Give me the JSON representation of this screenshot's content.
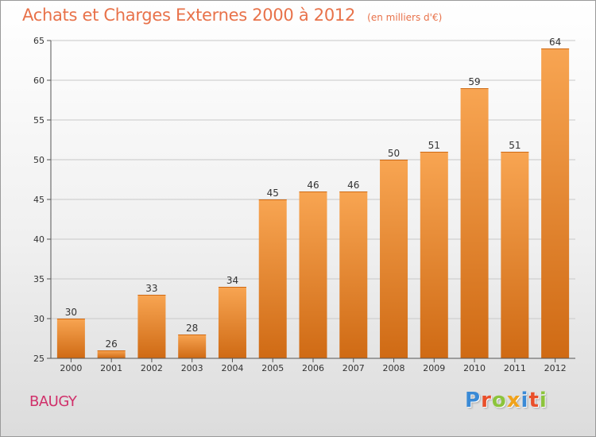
{
  "header": {
    "title": "Achats et Charges Externes 2000 à 2012",
    "unit": "(en milliers d'€)"
  },
  "footer": {
    "commune": "BAUGY",
    "brand": "Proxiti"
  },
  "colors": {
    "title": "#e8724a",
    "bar_light": "#f8a552",
    "bar_dark": "#cf6a14",
    "commune": "#d0306a",
    "axis": "#555555",
    "grid": "#c8c8c8",
    "brand_letters": [
      "#3a8ad6",
      "#e94f2a",
      "#8cc43c",
      "#f0a21a",
      "#3a8ad6",
      "#e94f2a",
      "#8cc43c"
    ]
  },
  "chart_data": {
    "type": "bar",
    "title": "Achats et Charges Externes 2000 à 2012",
    "unit": "(en milliers d'€)",
    "categories": [
      "2000",
      "2001",
      "2002",
      "2003",
      "2004",
      "2005",
      "2006",
      "2007",
      "2008",
      "2009",
      "2010",
      "2011",
      "2012"
    ],
    "values": [
      30,
      26,
      33,
      28,
      34,
      45,
      46,
      46,
      50,
      51,
      59,
      51,
      64
    ],
    "ylim": [
      25,
      65
    ],
    "yticks": [
      25,
      30,
      35,
      40,
      45,
      50,
      55,
      60,
      65
    ],
    "grid": true,
    "data_labels": true,
    "legend": "none"
  }
}
